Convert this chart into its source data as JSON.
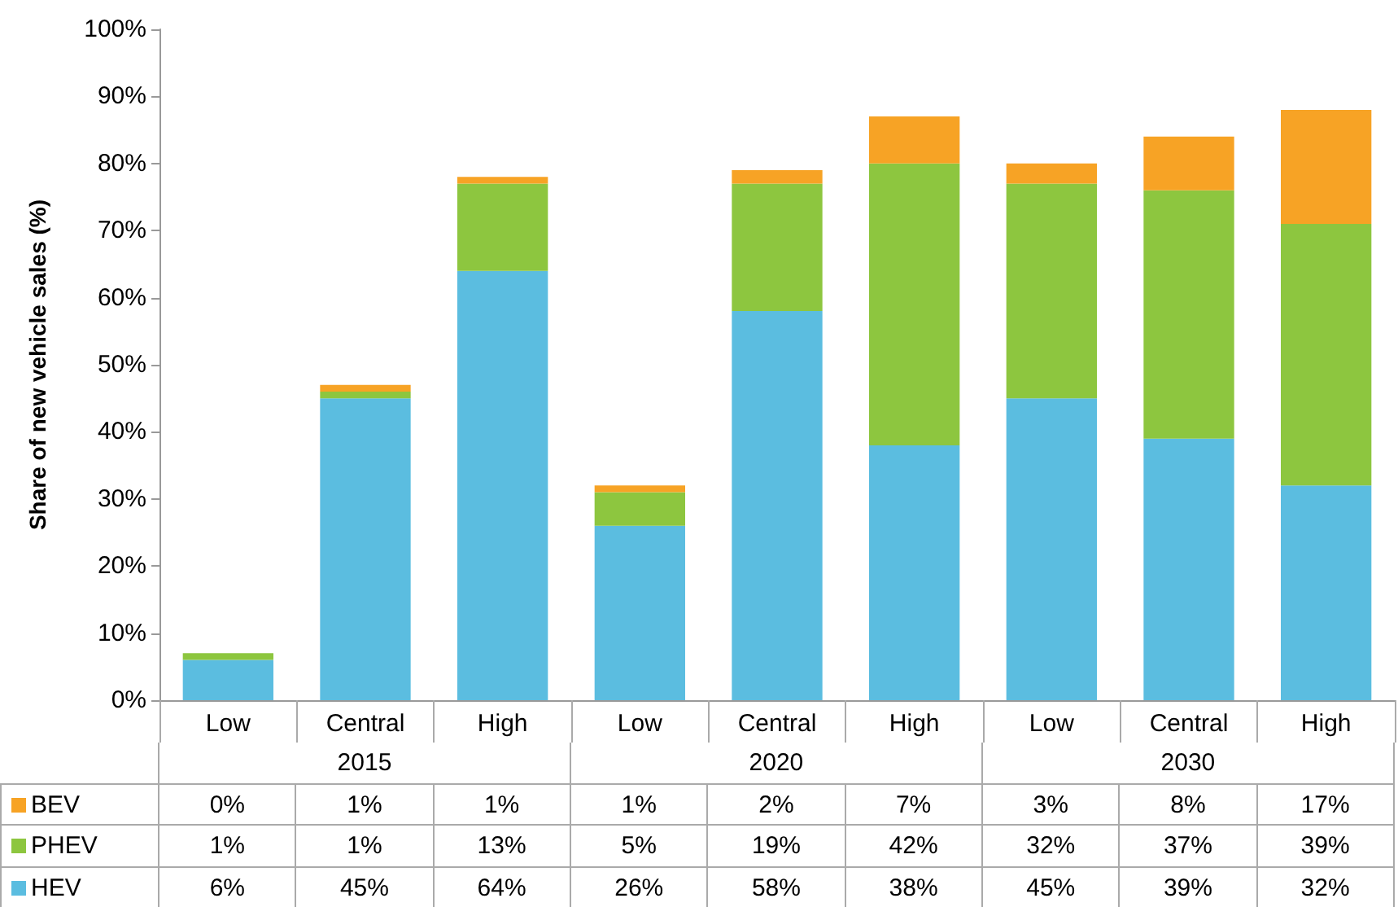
{
  "chart_data": {
    "type": "bar",
    "stacked": true,
    "ylabel": "Share of new vehicle sales (%)",
    "categories": [
      "Low",
      "Central",
      "High",
      "Low",
      "Central",
      "High",
      "Low",
      "Central",
      "High"
    ],
    "annotations": [
      "2015",
      "2020",
      "2030"
    ],
    "series": [
      {
        "name": "HEV",
        "color": "#5bbde0",
        "values": [
          6,
          45,
          64,
          26,
          58,
          38,
          45,
          39,
          32
        ],
        "value_labels": [
          "6%",
          "45%",
          "64%",
          "26%",
          "58%",
          "38%",
          "45%",
          "39%",
          "32%"
        ]
      },
      {
        "name": "PHEV",
        "color": "#8dc63f",
        "values": [
          1,
          1,
          13,
          5,
          19,
          42,
          32,
          37,
          39
        ],
        "value_labels": [
          "1%",
          "1%",
          "13%",
          "5%",
          "19%",
          "42%",
          "32%",
          "37%",
          "39%"
        ]
      },
      {
        "name": "BEV",
        "color": "#f7a325",
        "values": [
          0,
          1,
          1,
          1,
          2,
          7,
          3,
          8,
          17
        ],
        "value_labels": [
          "0%",
          "1%",
          "1%",
          "1%",
          "2%",
          "7%",
          "3%",
          "8%",
          "17%"
        ]
      }
    ],
    "ylim": [
      0,
      100
    ],
    "yticks": [
      {
        "value": 0,
        "label": "0%"
      },
      {
        "value": 10,
        "label": "10%"
      },
      {
        "value": 20,
        "label": "20%"
      },
      {
        "value": 30,
        "label": "30%"
      },
      {
        "value": 40,
        "label": "40%"
      },
      {
        "value": 50,
        "label": "50%"
      },
      {
        "value": 60,
        "label": "60%"
      },
      {
        "value": 70,
        "label": "70%"
      },
      {
        "value": 80,
        "label": "80%"
      },
      {
        "value": 90,
        "label": "90%"
      },
      {
        "value": 100,
        "label": "100%"
      }
    ],
    "grid": false,
    "legend": "bottom left"
  }
}
